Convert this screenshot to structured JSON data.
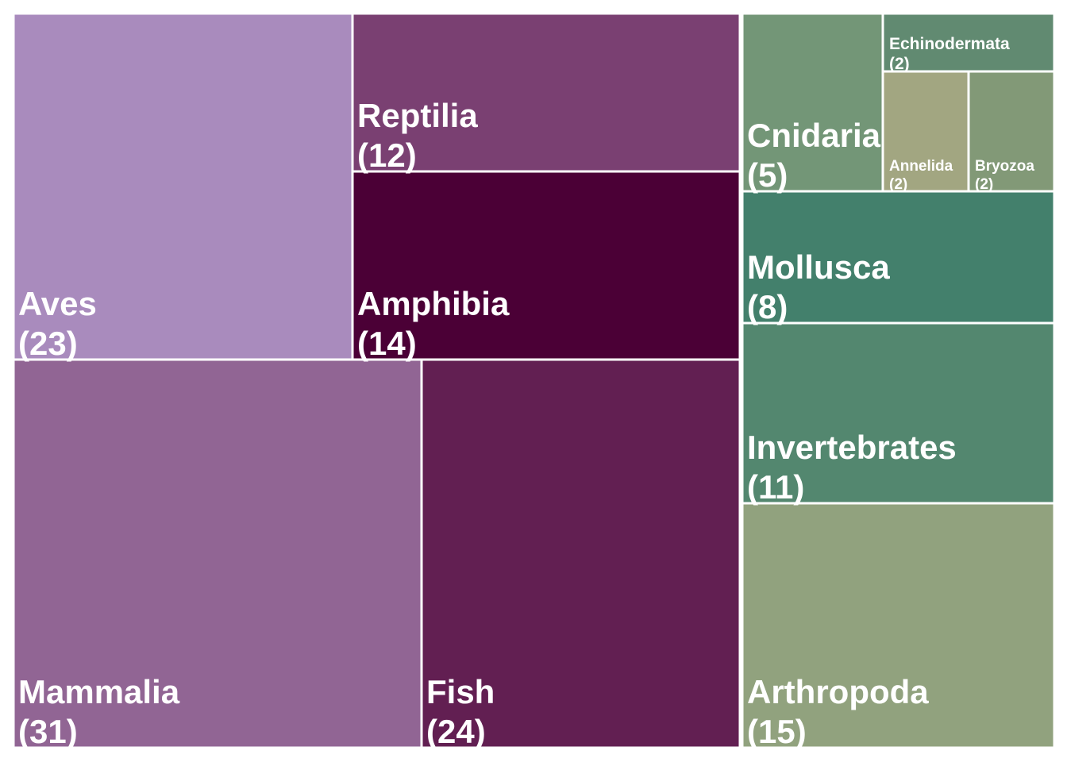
{
  "chart_data": {
    "type": "treemap",
    "title": "",
    "groups": [
      {
        "name": "",
        "items": [
          {
            "label": "Mammalia",
            "count": "(31)",
            "value": 31,
            "color": "#916594"
          },
          {
            "label": "Fish",
            "count": "(24)",
            "value": 24,
            "color": "#621f52"
          },
          {
            "label": "Aves",
            "count": "(23)",
            "value": 23,
            "color": "#a98bbd"
          },
          {
            "label": "Amphibia",
            "count": "(14)",
            "value": 14,
            "color": "#4b0036"
          },
          {
            "label": "Reptilia",
            "count": "(12)",
            "value": 12,
            "color": "#7a4072"
          }
        ]
      },
      {
        "name": "",
        "items": [
          {
            "label": "Arthropoda",
            "count": "(15)",
            "value": 15,
            "color": "#91a27e"
          },
          {
            "label": "Invertebrates",
            "count": "(11)",
            "value": 11,
            "color": "#53876f"
          },
          {
            "label": "Mollusca",
            "count": "(8)",
            "value": 8,
            "color": "#43806c"
          },
          {
            "label": "Cnidaria",
            "count": "(5)",
            "value": 5,
            "color": "#739677"
          },
          {
            "label": "Echinodermata",
            "count": "(2)",
            "value": 2,
            "color": "#618a71"
          },
          {
            "label": "Annelida",
            "count": "(2)",
            "value": 2,
            "color": "#a2a681"
          },
          {
            "label": "Bryozoa",
            "count": "(2)",
            "value": 2,
            "color": "#829977"
          }
        ]
      }
    ]
  }
}
